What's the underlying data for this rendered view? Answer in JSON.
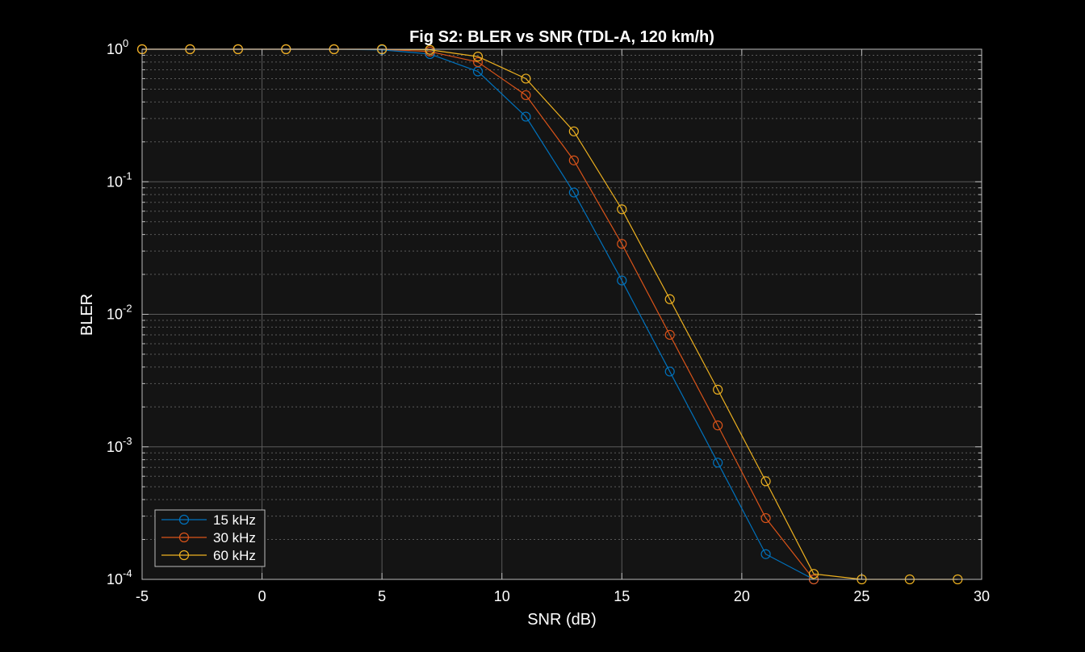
{
  "chart_data": {
    "type": "line",
    "title": "Fig S2: BLER vs SNR (TDL-A, 120 km/h)",
    "xlabel": "SNR (dB)",
    "ylabel": "BLER",
    "xlim": [
      -5,
      30
    ],
    "ylim": [
      0.0001,
      1
    ],
    "yscale": "log",
    "grid": true,
    "legend_position": "bottom-left",
    "x_ticks": [
      "-5",
      "0",
      "5",
      "10",
      "15",
      "20",
      "25",
      "30"
    ],
    "y_ticks": [
      {
        "base": "10",
        "exp": "0"
      },
      {
        "base": "10",
        "exp": "-1"
      },
      {
        "base": "10",
        "exp": "-2"
      },
      {
        "base": "10",
        "exp": "-3"
      },
      {
        "base": "10",
        "exp": "-4"
      }
    ],
    "colors": {
      "background": "#000000",
      "plot_area": "#141414",
      "grid": "#5a5a5a",
      "axis": "#bdbdbd"
    },
    "series": [
      {
        "name": "15 kHz",
        "color": "#0072BD",
        "x": [
          -5,
          -3,
          -1,
          1,
          3,
          5,
          7,
          9,
          11,
          13,
          15,
          17,
          19,
          21,
          23
        ],
        "y": [
          1,
          1,
          1,
          1,
          1,
          0.99,
          0.92,
          0.68,
          0.31,
          0.083,
          0.018,
          0.0037,
          0.00076,
          0.000155,
          0.0001
        ]
      },
      {
        "name": "30 kHz",
        "color": "#D95319",
        "x": [
          -5,
          -3,
          -1,
          1,
          3,
          5,
          7,
          9,
          11,
          13,
          15,
          17,
          19,
          21,
          23
        ],
        "y": [
          1,
          1,
          1,
          1,
          1,
          1,
          0.96,
          0.8,
          0.45,
          0.145,
          0.034,
          0.007,
          0.00145,
          0.00029,
          0.0001
        ]
      },
      {
        "name": "60 kHz",
        "color": "#EDB120",
        "x": [
          -5,
          -3,
          -1,
          1,
          3,
          5,
          7,
          9,
          11,
          13,
          15,
          17,
          19,
          21,
          23,
          25,
          27,
          29
        ],
        "y": [
          1,
          1,
          1,
          1,
          1,
          1,
          0.99,
          0.88,
          0.6,
          0.24,
          0.062,
          0.013,
          0.0027,
          0.00055,
          0.00011,
          0.0001,
          0.0001,
          0.0001
        ]
      }
    ]
  }
}
